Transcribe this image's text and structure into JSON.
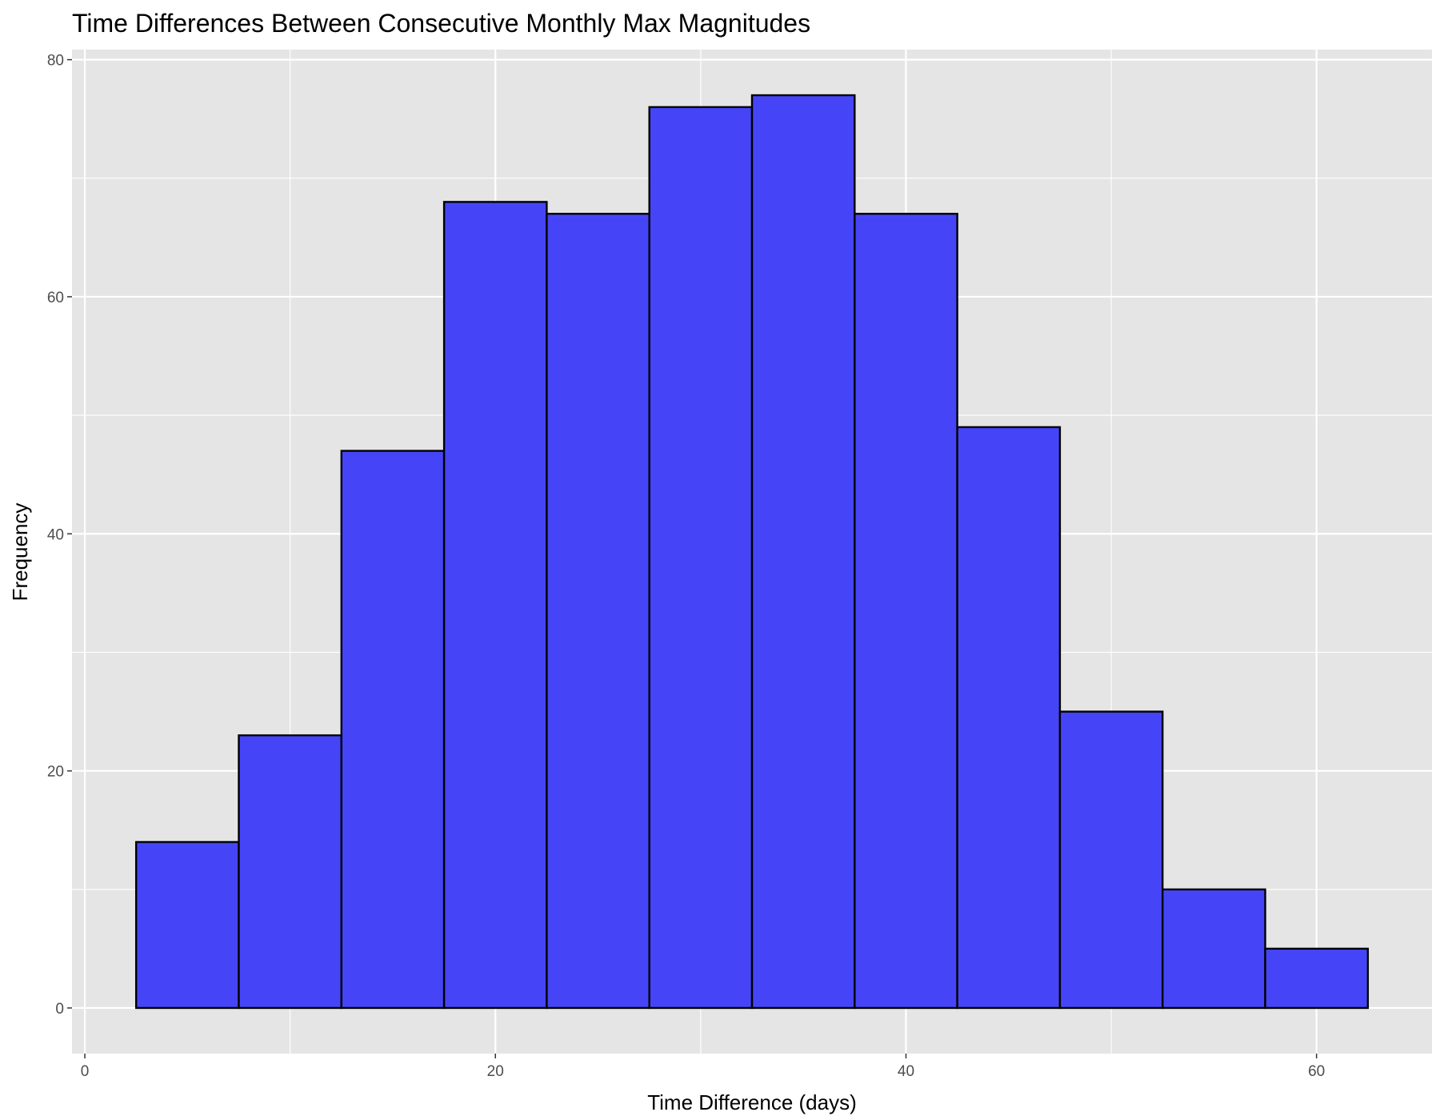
{
  "chart_data": {
    "type": "bar",
    "subtype": "histogram",
    "title": "Time Differences Between Consecutive Monthly Max Magnitudes",
    "xlabel": "Time Difference (days)",
    "ylabel": "Frequency",
    "bins": [
      {
        "x0": 2.5,
        "x1": 7.5,
        "count": 14
      },
      {
        "x0": 7.5,
        "x1": 12.5,
        "count": 23
      },
      {
        "x0": 12.5,
        "x1": 17.5,
        "count": 47
      },
      {
        "x0": 17.5,
        "x1": 22.5,
        "count": 68
      },
      {
        "x0": 22.5,
        "x1": 27.5,
        "count": 67
      },
      {
        "x0": 27.5,
        "x1": 32.5,
        "count": 76
      },
      {
        "x0": 32.5,
        "x1": 37.5,
        "count": 77
      },
      {
        "x0": 37.5,
        "x1": 42.5,
        "count": 67
      },
      {
        "x0": 42.5,
        "x1": 47.5,
        "count": 49
      },
      {
        "x0": 47.5,
        "x1": 52.5,
        "count": 25
      },
      {
        "x0": 52.5,
        "x1": 57.5,
        "count": 10
      },
      {
        "x0": 57.5,
        "x1": 62.5,
        "count": 5
      }
    ],
    "xlim": [
      -0.625,
      65.625
    ],
    "ylim": [
      -3.85,
      80.85
    ],
    "x_ticks": [
      "0",
      "20",
      "40",
      "60"
    ],
    "y_ticks": [
      "0",
      "20",
      "40",
      "60",
      "80"
    ],
    "grid": true,
    "legend": "none",
    "colors": {
      "bar_fill": "#4545f7",
      "bar_outline": "#000000",
      "panel_background": "#e5e5e5",
      "grid_line": "#ffffff"
    }
  }
}
